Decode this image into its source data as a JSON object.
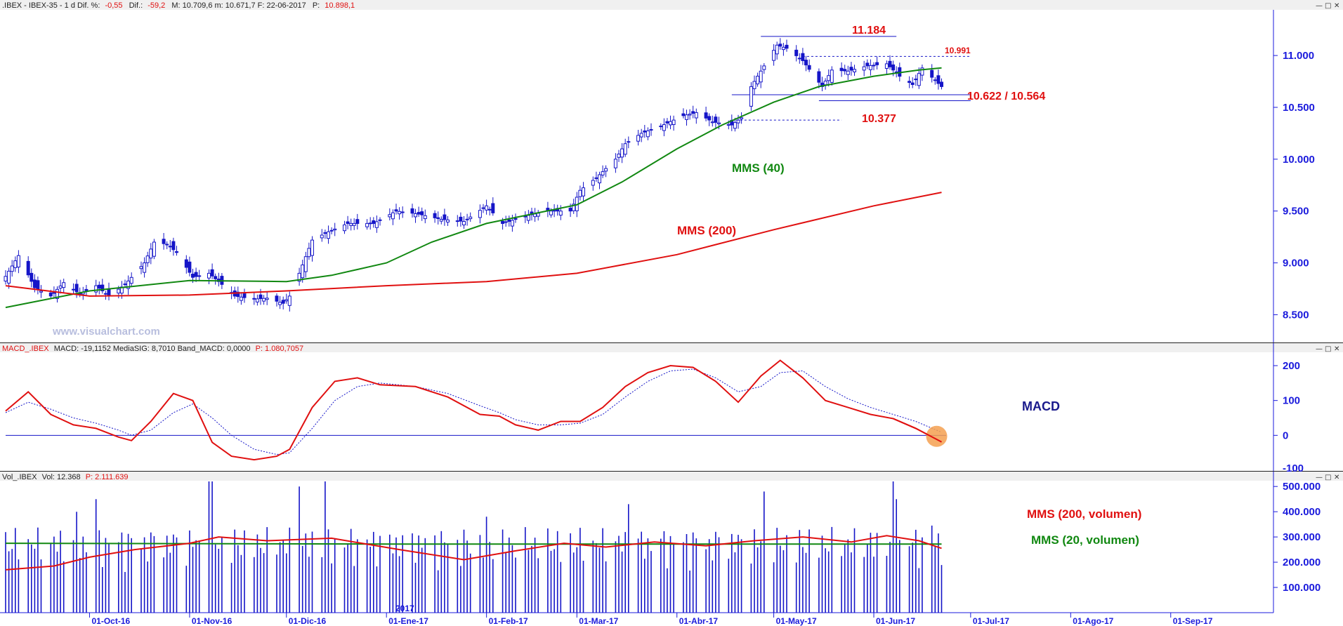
{
  "colors": {
    "candle": "#1515c8",
    "price_line": "#1515c8",
    "mms40": "#118811",
    "mms200": "#e01010",
    "macd": "#e01010",
    "signal": "#1515c8",
    "volume": "#1515c8",
    "vol_mms20": "#118811",
    "vol_mms200": "#e01010",
    "axis_text": "#1a1adc",
    "highlight": "#f5a050"
  },
  "icons": {
    "minimize": "minimize-icon",
    "maximize": "restore-icon",
    "close": "close-icon"
  },
  "price_panel": {
    "header": {
      "symbol": ".IBEX - IBEX-35 -  1 d  Dif. %:",
      "dif_pct": "-0,55",
      "dif_label": "Dif.:",
      "dif": "-59,2",
      "rest": "M: 10.709,6  m: 10.671,7  F: 22-06-2017",
      "p_label": "P:",
      "p_value": "10.898,1"
    },
    "watermark": "www.visualchart.com",
    "annotations": {
      "high": "11.184",
      "resistance": "10.991",
      "support": "10.622 / 10.564",
      "low_support": "10.377",
      "mms40_label": "MMS (40)",
      "mms200_label": "MMS (200)"
    }
  },
  "macd_panel": {
    "header": {
      "name": "MACD_.IBEX",
      "values": "MACD: -19,1152  MediaSIG: 8,7010  Band_MACD: 0,0000",
      "p_label": "P: 1.080,7057"
    },
    "label": "MACD"
  },
  "volume_panel": {
    "header": {
      "name": "Vol_.IBEX",
      "values": "Vol: 12.368",
      "p_label": "P: 2.111.639"
    },
    "mms200_label": "MMS (200, volumen)",
    "mms20_label": "MMS (20, volumen)",
    "year_marker": "2017"
  },
  "chart_data": [
    {
      "type": "candlestick",
      "title": "IBEX-35 daily",
      "ylim": [
        8300,
        11400
      ],
      "y_ticks": [
        "8.500",
        "9.000",
        "9.500",
        "10.000",
        "10.500",
        "11.000"
      ],
      "y_tick_values": [
        8500,
        9000,
        9500,
        10000,
        10500,
        11000
      ],
      "x_ticks": [
        "01-Oct-16",
        "01-Nov-16",
        "01-Dic-16",
        "01-Ene-17",
        "01-Feb-17",
        "01-Mar-17",
        "01-Abr-17",
        "01-May-17",
        "01-Jun-17",
        "01-Jul-17",
        "01-Ago-17",
        "01-Sep-17"
      ],
      "x_range": [
        "2016-09-05",
        "2017-09-30"
      ],
      "key_levels": {
        "high": 11184,
        "resistance": 10991,
        "support_hi": 10622,
        "support_lo": 10564,
        "lower": 10377
      },
      "close_points": [
        [
          "2016-09-05",
          8870
        ],
        [
          "2016-09-09",
          9070
        ],
        [
          "2016-09-14",
          8760
        ],
        [
          "2016-09-19",
          8680
        ],
        [
          "2016-09-23",
          8810
        ],
        [
          "2016-09-28",
          8700
        ],
        [
          "2016-10-03",
          8780
        ],
        [
          "2016-10-07",
          8680
        ],
        [
          "2016-10-12",
          8790
        ],
        [
          "2016-10-18",
          9000
        ],
        [
          "2016-10-21",
          9200
        ],
        [
          "2016-10-25",
          9180
        ],
        [
          "2016-10-28",
          9100
        ],
        [
          "2016-11-02",
          8860
        ],
        [
          "2016-11-07",
          8900
        ],
        [
          "2016-11-10",
          8820
        ],
        [
          "2016-11-15",
          8680
        ],
        [
          "2016-11-21",
          8650
        ],
        [
          "2016-11-25",
          8660
        ],
        [
          "2016-11-30",
          8610
        ],
        [
          "2016-12-02",
          8680
        ],
        [
          "2016-12-05",
          8900
        ],
        [
          "2016-12-09",
          9220
        ],
        [
          "2016-12-14",
          9300
        ],
        [
          "2016-12-20",
          9380
        ],
        [
          "2016-12-28",
          9380
        ],
        [
          "2017-01-04",
          9500
        ],
        [
          "2017-01-11",
          9470
        ],
        [
          "2017-01-18",
          9420
        ],
        [
          "2017-01-25",
          9400
        ],
        [
          "2017-02-01",
          9550
        ],
        [
          "2017-02-06",
          9380
        ],
        [
          "2017-02-13",
          9450
        ],
        [
          "2017-02-20",
          9500
        ],
        [
          "2017-02-27",
          9500
        ],
        [
          "2017-03-02",
          9700
        ],
        [
          "2017-03-07",
          9820
        ],
        [
          "2017-03-13",
          10000
        ],
        [
          "2017-03-16",
          10150
        ],
        [
          "2017-03-21",
          10250
        ],
        [
          "2017-03-27",
          10320
        ],
        [
          "2017-04-03",
          10420
        ],
        [
          "2017-04-07",
          10450
        ],
        [
          "2017-04-12",
          10360
        ],
        [
          "2017-04-18",
          10330
        ],
        [
          "2017-04-21",
          10400
        ],
        [
          "2017-04-24",
          10700
        ],
        [
          "2017-04-28",
          10900
        ],
        [
          "2017-05-02",
          11100
        ],
        [
          "2017-05-05",
          11070
        ],
        [
          "2017-05-10",
          10950
        ],
        [
          "2017-05-16",
          10700
        ],
        [
          "2017-05-19",
          10860
        ],
        [
          "2017-05-24",
          10850
        ],
        [
          "2017-05-30",
          10900
        ],
        [
          "2017-06-05",
          10920
        ],
        [
          "2017-06-09",
          10800
        ],
        [
          "2017-06-13",
          10720
        ],
        [
          "2017-06-16",
          10880
        ],
        [
          "2017-06-22",
          10700
        ]
      ],
      "mms40": [
        [
          "2016-09-05",
          8570
        ],
        [
          "2016-10-01",
          8730
        ],
        [
          "2016-11-01",
          8830
        ],
        [
          "2016-12-01",
          8820
        ],
        [
          "2016-12-15",
          8880
        ],
        [
          "2017-01-01",
          9000
        ],
        [
          "2017-01-15",
          9200
        ],
        [
          "2017-02-01",
          9380
        ],
        [
          "2017-02-15",
          9470
        ],
        [
          "2017-03-01",
          9560
        ],
        [
          "2017-03-15",
          9780
        ],
        [
          "2017-04-01",
          10100
        ],
        [
          "2017-04-15",
          10330
        ],
        [
          "2017-05-01",
          10550
        ],
        [
          "2017-05-15",
          10700
        ],
        [
          "2017-06-01",
          10800
        ],
        [
          "2017-06-15",
          10860
        ],
        [
          "2017-06-22",
          10880
        ]
      ],
      "mms200": [
        [
          "2016-09-05",
          8780
        ],
        [
          "2016-10-01",
          8680
        ],
        [
          "2016-11-01",
          8690
        ],
        [
          "2016-12-01",
          8730
        ],
        [
          "2017-01-01",
          8780
        ],
        [
          "2017-02-01",
          8820
        ],
        [
          "2017-03-01",
          8900
        ],
        [
          "2017-04-01",
          9080
        ],
        [
          "2017-05-01",
          9320
        ],
        [
          "2017-06-01",
          9550
        ],
        [
          "2017-06-22",
          9680
        ]
      ]
    },
    {
      "type": "line",
      "title": "MACD",
      "ylim": [
        -100,
        240
      ],
      "y_ticks": [
        "200",
        "100",
        "0",
        "-100"
      ],
      "y_tick_values": [
        200,
        100,
        0,
        -100
      ],
      "series": [
        {
          "name": "MACD",
          "points": [
            [
              "2016-09-05",
              70
            ],
            [
              "2016-09-12",
              125
            ],
            [
              "2016-09-19",
              60
            ],
            [
              "2016-09-26",
              30
            ],
            [
              "2016-10-03",
              20
            ],
            [
              "2016-10-10",
              -5
            ],
            [
              "2016-10-14",
              -15
            ],
            [
              "2016-10-20",
              40
            ],
            [
              "2016-10-27",
              120
            ],
            [
              "2016-11-02",
              100
            ],
            [
              "2016-11-08",
              -20
            ],
            [
              "2016-11-14",
              -60
            ],
            [
              "2016-11-21",
              -70
            ],
            [
              "2016-11-28",
              -60
            ],
            [
              "2016-12-02",
              -40
            ],
            [
              "2016-12-09",
              80
            ],
            [
              "2016-12-16",
              155
            ],
            [
              "2016-12-23",
              165
            ],
            [
              "2016-12-30",
              145
            ],
            [
              "2017-01-10",
              140
            ],
            [
              "2017-01-20",
              110
            ],
            [
              "2017-01-30",
              60
            ],
            [
              "2017-02-05",
              55
            ],
            [
              "2017-02-10",
              30
            ],
            [
              "2017-02-17",
              15
            ],
            [
              "2017-02-24",
              40
            ],
            [
              "2017-03-02",
              40
            ],
            [
              "2017-03-09",
              80
            ],
            [
              "2017-03-16",
              140
            ],
            [
              "2017-03-23",
              180
            ],
            [
              "2017-03-30",
              200
            ],
            [
              "2017-04-06",
              195
            ],
            [
              "2017-04-13",
              155
            ],
            [
              "2017-04-20",
              95
            ],
            [
              "2017-04-27",
              170
            ],
            [
              "2017-05-03",
              215
            ],
            [
              "2017-05-10",
              165
            ],
            [
              "2017-05-17",
              100
            ],
            [
              "2017-05-24",
              80
            ],
            [
              "2017-05-31",
              60
            ],
            [
              "2017-06-07",
              48
            ],
            [
              "2017-06-14",
              20
            ],
            [
              "2017-06-22",
              -19
            ]
          ]
        },
        {
          "name": "MediaSIG",
          "points": [
            [
              "2016-09-05",
              65
            ],
            [
              "2016-09-12",
              95
            ],
            [
              "2016-09-19",
              75
            ],
            [
              "2016-09-26",
              50
            ],
            [
              "2016-10-03",
              35
            ],
            [
              "2016-10-10",
              15
            ],
            [
              "2016-10-14",
              0
            ],
            [
              "2016-10-20",
              15
            ],
            [
              "2016-10-27",
              65
            ],
            [
              "2016-11-02",
              90
            ],
            [
              "2016-11-08",
              50
            ],
            [
              "2016-11-14",
              0
            ],
            [
              "2016-11-21",
              -40
            ],
            [
              "2016-11-28",
              -55
            ],
            [
              "2016-12-02",
              -50
            ],
            [
              "2016-12-09",
              20
            ],
            [
              "2016-12-16",
              100
            ],
            [
              "2016-12-23",
              140
            ],
            [
              "2016-12-30",
              150
            ],
            [
              "2017-01-10",
              140
            ],
            [
              "2017-01-20",
              120
            ],
            [
              "2017-01-30",
              85
            ],
            [
              "2017-02-05",
              65
            ],
            [
              "2017-02-10",
              45
            ],
            [
              "2017-02-17",
              30
            ],
            [
              "2017-02-24",
              30
            ],
            [
              "2017-03-02",
              35
            ],
            [
              "2017-03-09",
              60
            ],
            [
              "2017-03-16",
              110
            ],
            [
              "2017-03-23",
              155
            ],
            [
              "2017-03-30",
              185
            ],
            [
              "2017-04-06",
              190
            ],
            [
              "2017-04-13",
              165
            ],
            [
              "2017-04-20",
              125
            ],
            [
              "2017-04-27",
              140
            ],
            [
              "2017-05-03",
              180
            ],
            [
              "2017-05-10",
              185
            ],
            [
              "2017-05-17",
              140
            ],
            [
              "2017-05-24",
              105
            ],
            [
              "2017-05-31",
              80
            ],
            [
              "2017-06-07",
              60
            ],
            [
              "2017-06-14",
              40
            ],
            [
              "2017-06-22",
              9
            ]
          ]
        }
      ],
      "zero_line": 0
    },
    {
      "type": "bar",
      "title": "Volumen",
      "ylim": [
        0,
        520000
      ],
      "y_ticks": [
        "100.000",
        "200.000",
        "300.000",
        "400.000",
        "500.000"
      ],
      "y_tick_values": [
        100000,
        200000,
        300000,
        400000,
        500000
      ],
      "series": [
        {
          "name": "MMS (200, volumen)",
          "points": [
            [
              "2016-09-05",
              170000
            ],
            [
              "2016-09-20",
              185000
            ],
            [
              "2016-10-01",
              220000
            ],
            [
              "2016-10-15",
              250000
            ],
            [
              "2016-11-01",
              275000
            ],
            [
              "2016-11-10",
              300000
            ],
            [
              "2016-11-25",
              285000
            ],
            [
              "2016-12-15",
              295000
            ],
            [
              "2017-01-05",
              250000
            ],
            [
              "2017-01-25",
              210000
            ],
            [
              "2017-02-10",
              245000
            ],
            [
              "2017-02-25",
              275000
            ],
            [
              "2017-03-10",
              260000
            ],
            [
              "2017-03-25",
              280000
            ],
            [
              "2017-04-10",
              265000
            ],
            [
              "2017-04-25",
              285000
            ],
            [
              "2017-05-10",
              300000
            ],
            [
              "2017-05-25",
              280000
            ],
            [
              "2017-06-05",
              305000
            ],
            [
              "2017-06-15",
              285000
            ],
            [
              "2017-06-22",
              255000
            ]
          ]
        },
        {
          "name": "MMS (20, volumen)",
          "points": [
            [
              "2016-09-05",
              275000
            ],
            [
              "2017-01-01",
              272000
            ],
            [
              "2017-06-22",
              272000
            ]
          ]
        }
      ],
      "volume_peaks": [
        [
          "2016-09-27",
          400000
        ],
        [
          "2016-10-03",
          450000
        ],
        [
          "2016-11-07",
          520000
        ],
        [
          "2016-11-08",
          520000
        ],
        [
          "2016-12-05",
          500000
        ],
        [
          "2016-12-13",
          520000
        ],
        [
          "2017-02-01",
          380000
        ],
        [
          "2017-03-17",
          430000
        ],
        [
          "2017-04-28",
          480000
        ],
        [
          "2017-06-07",
          520000
        ],
        [
          "2017-06-08",
          450000
        ],
        [
          "2017-06-19",
          345000
        ]
      ]
    }
  ]
}
